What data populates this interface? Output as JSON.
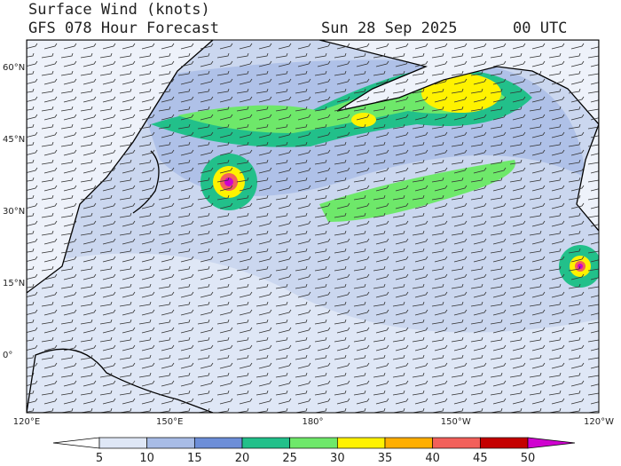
{
  "header": {
    "title": "Surface Wind (knots)",
    "subtitle": "GFS 078 Hour Forecast",
    "date": "Sun 28 Sep 2025",
    "time": "00 UTC"
  },
  "map": {
    "lat_labels": [
      "60°N",
      "45°N",
      "30°N",
      "15°N",
      "0°"
    ],
    "lon_labels": [
      "120°E",
      "150°E",
      "180°",
      "150°W",
      "120°W"
    ]
  },
  "colorbar": {
    "labels": [
      5,
      10,
      15,
      20,
      25,
      30,
      35,
      40,
      45,
      50
    ],
    "colors": [
      "#ffffff",
      "#dfe7f6",
      "#a8bce6",
      "#6d8ed8",
      "#22c08a",
      "#6ee86a",
      "#fff200",
      "#ffae00",
      "#f2605a",
      "#c40000",
      "#d000d0"
    ]
  }
}
